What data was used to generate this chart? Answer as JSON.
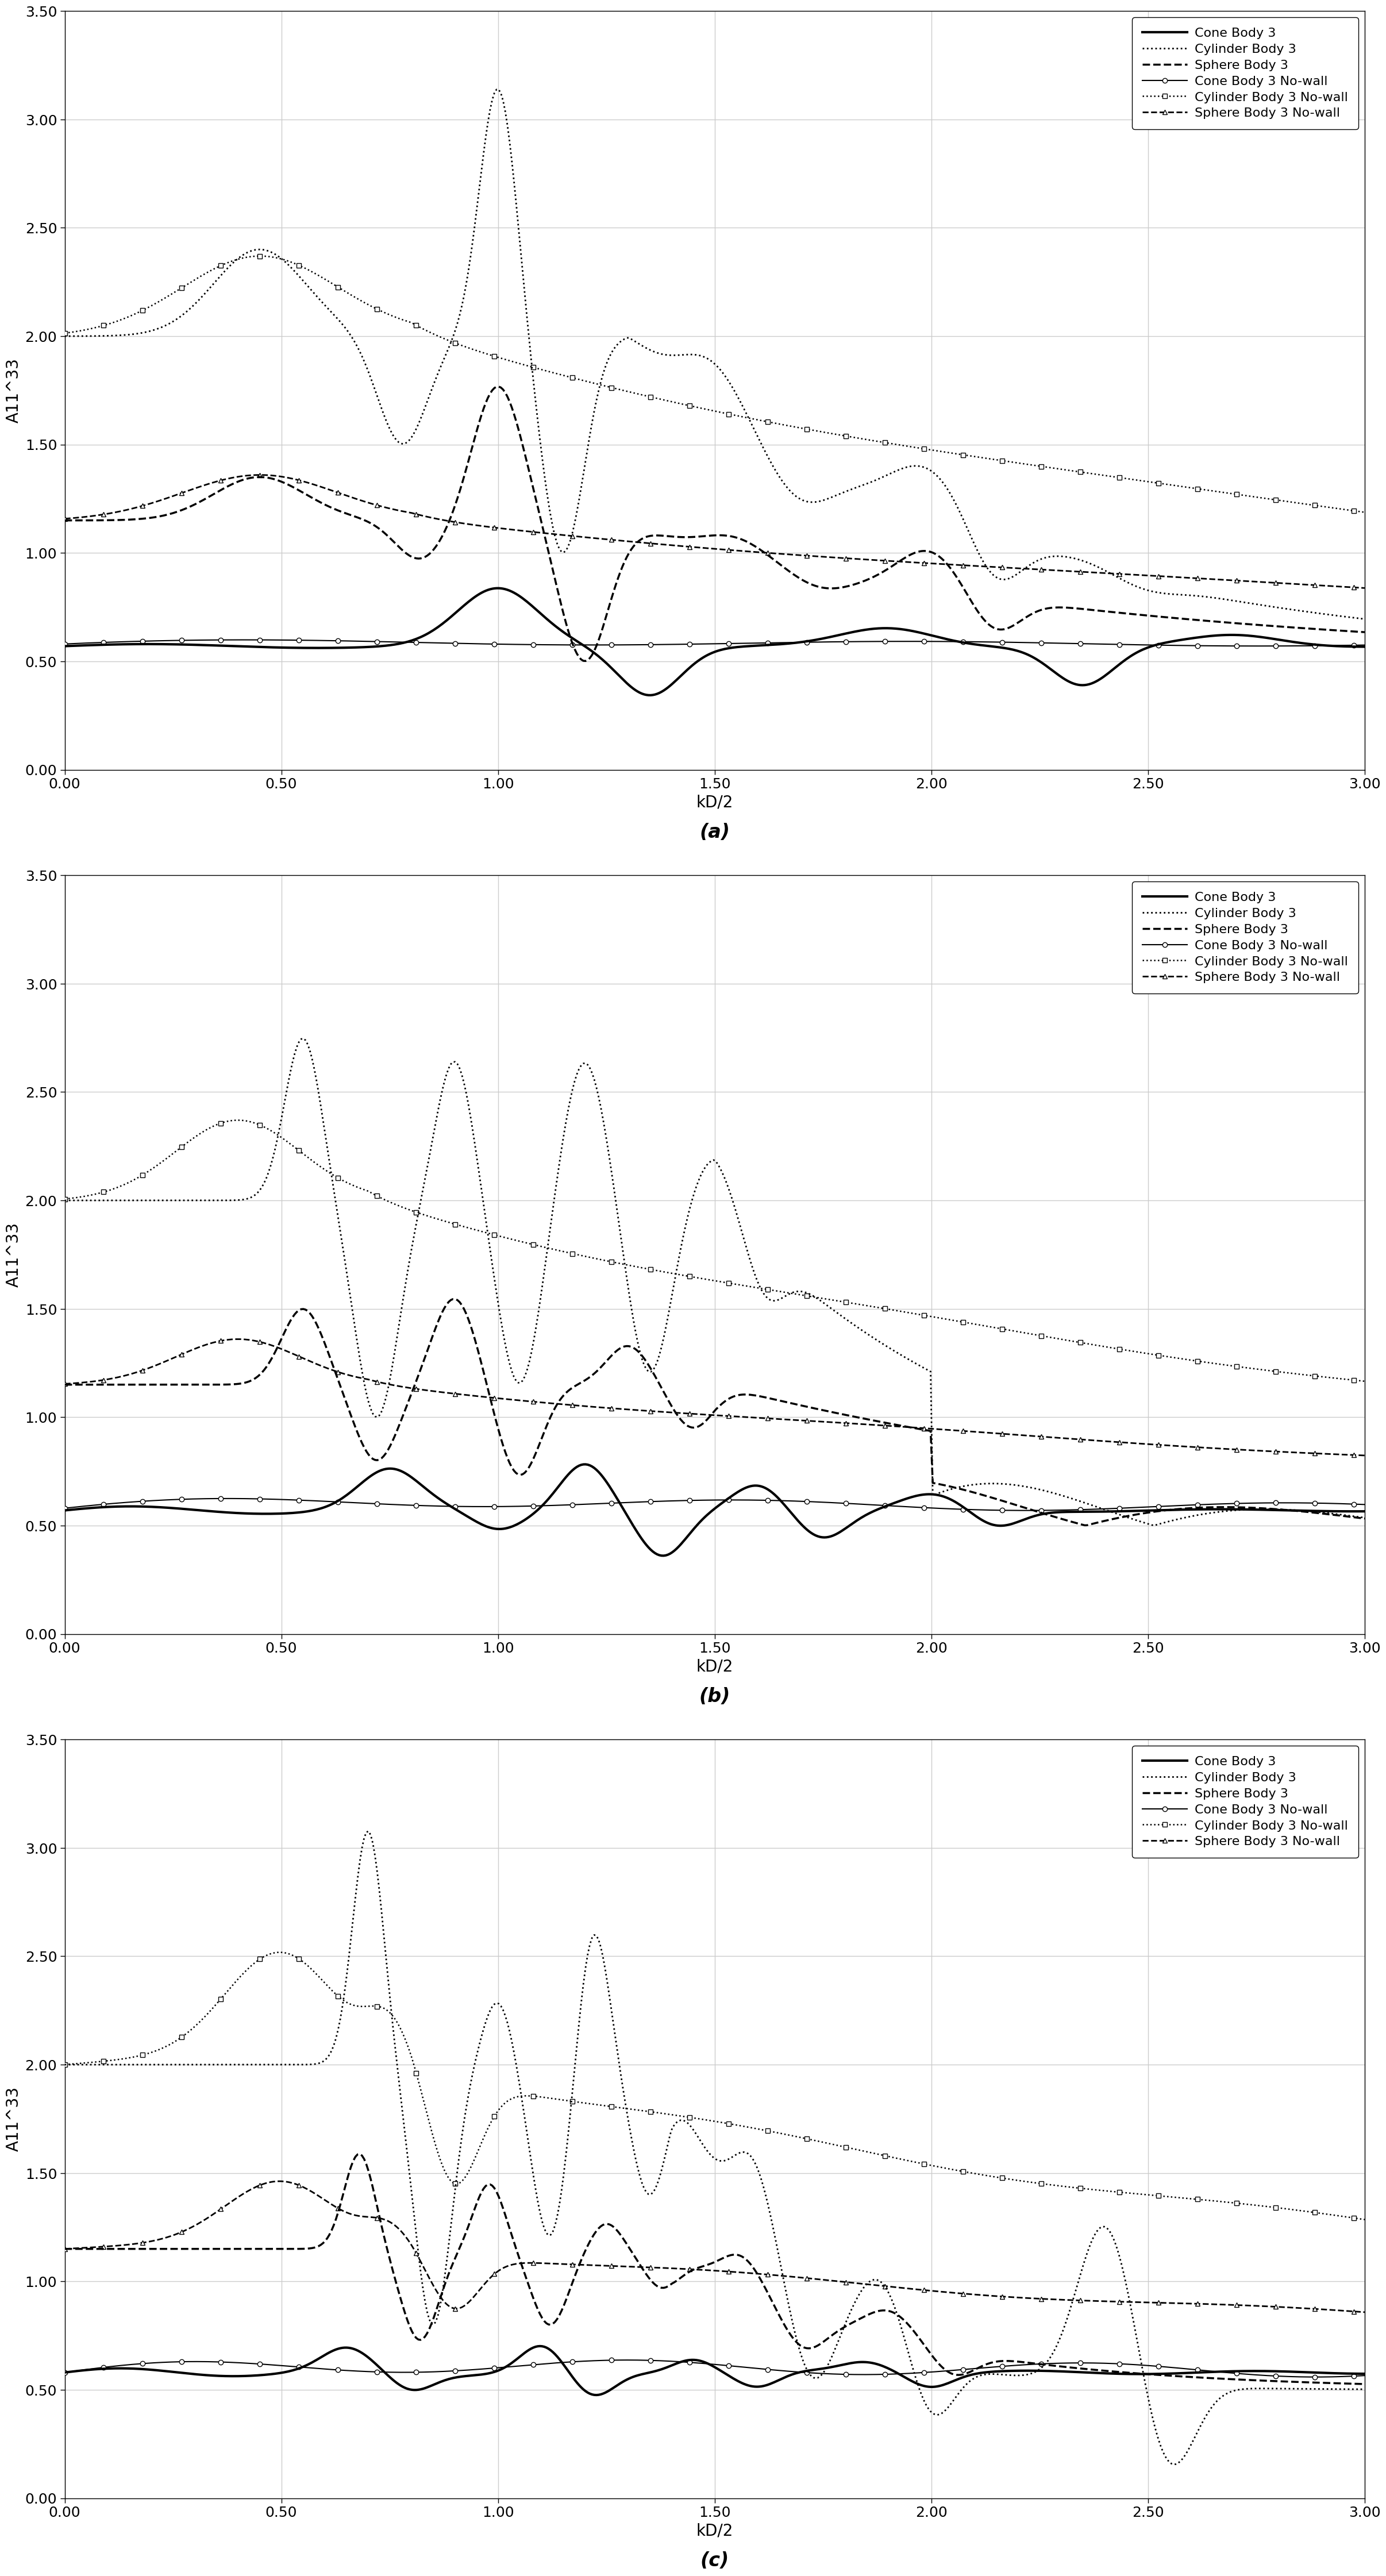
{
  "title_a": "(a)",
  "title_b": "(b)",
  "title_c": "(c)",
  "xlabel": "kD/2",
  "ylabel": "A11^33",
  "xlim": [
    0.0,
    3.0
  ],
  "ylim": [
    0.0,
    3.5
  ],
  "yticks": [
    0.0,
    0.5,
    1.0,
    1.5,
    2.0,
    2.5,
    3.0,
    3.5
  ],
  "xticks": [
    0.0,
    0.5,
    1.0,
    1.5,
    2.0,
    2.5,
    3.0
  ],
  "legend_labels": [
    "Cone Body 3",
    "Cylinder Body 3",
    "Sphere Body 3",
    "Cone Body 3 No-wall",
    "Cylinder Body 3 No-wall",
    "Sphere Body 3 No-wall"
  ],
  "background_color": "#ffffff",
  "grid_color": "#cccccc"
}
